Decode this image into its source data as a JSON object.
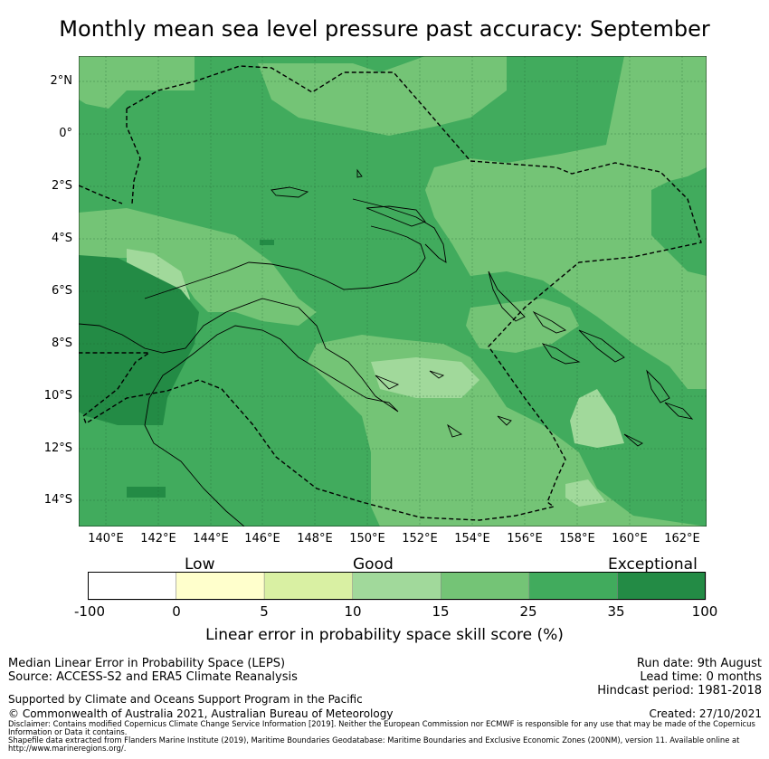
{
  "title": "Monthly mean sea level pressure past accuracy: September",
  "map": {
    "lat_labels": [
      "2°N",
      "0°",
      "2°S",
      "4°S",
      "6°S",
      "8°S",
      "10°S",
      "12°S",
      "14°S"
    ],
    "lon_labels": [
      "140°E",
      "142°E",
      "144°E",
      "146°E",
      "148°E",
      "150°E",
      "152°E",
      "154°E",
      "156°E",
      "158°E",
      "160°E",
      "162°E"
    ],
    "colors": {
      "exceptional": "#238b45",
      "very_high": "#41ab5d",
      "high": "#74c476",
      "good": "#a1d99b",
      "moderate": "#d9f0a3",
      "low": "#ffffcc",
      "none": "#ffffff"
    }
  },
  "colorbar": {
    "category_labels": [
      "Low",
      "Good",
      "Exceptional"
    ],
    "ticks": [
      "-100",
      "0",
      "5",
      "10",
      "15",
      "25",
      "35",
      "100"
    ],
    "colors": [
      "#ffffff",
      "#ffffcc",
      "#d9f0a3",
      "#a1d99b",
      "#74c476",
      "#41ab5d",
      "#238b45"
    ],
    "label": "Linear error in probability space skill score (%)"
  },
  "footer": {
    "line1": "Median Linear Error in Probability Space (LEPS)",
    "line2": "Source: ACCESS-S2 and ERA5 Climate Reanalysis",
    "run_date": "Run date: 9th August",
    "lead_time": "Lead time: 0 months",
    "hindcast": "Hindcast period: 1981-2018",
    "supported": "Supported by Climate and Oceans Support Program in the Pacific",
    "copyright": "© Commonwealth of Australia 2021, Australian Bureau of Meteorology",
    "created": "Created: 27/10/2021",
    "disclaimer": "Disclaimer: Contains modified Copernicus Climate Change Service Information [2019]. Neither the European Commission nor ECMWF is responsible for any use that may be made of the Copernicus Information or Data it contains.",
    "shapefile": "Shapefile data extracted from Flanders Marine Institute (2019), Maritime Boundaries Geodatabase: Maritime Boundaries and Exclusive Economic Zones (200NM), version 11. Available online at http://www.marineregions.org/."
  }
}
